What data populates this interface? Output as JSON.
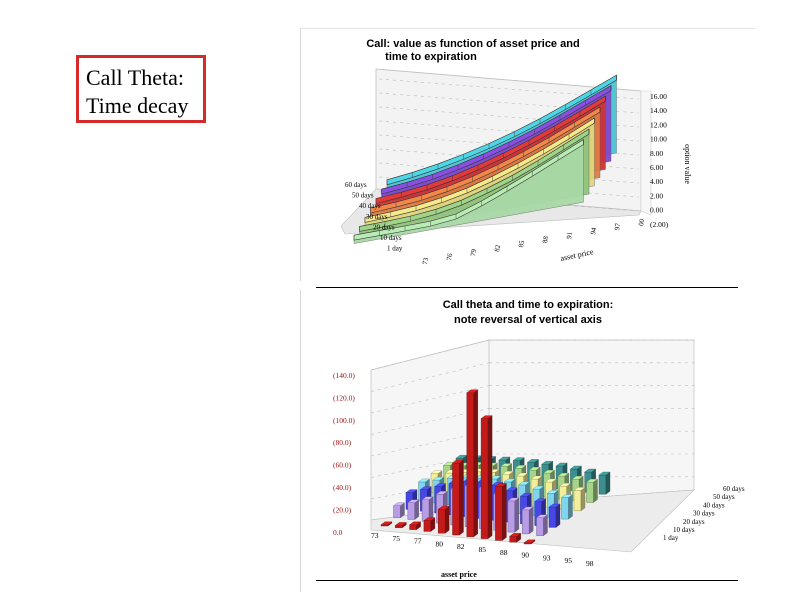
{
  "slide": {
    "title_line1": "Call Theta:",
    "title_line2": "Time decay"
  },
  "chart_data": [
    {
      "type": "area",
      "title_line1": "Call: value as function of asset price and",
      "title_line2": "time to expiration",
      "xlabel": "asset price",
      "zlabel": "option value",
      "x_ticks": [
        "73",
        "76",
        "79",
        "82",
        "85",
        "88",
        "91",
        "94",
        "97",
        "00"
      ],
      "z_ticks": [
        "16.00",
        "14.00",
        "12.00",
        "10.00",
        "8.00",
        "6.00",
        "4.00",
        "2.00",
        "0.00",
        "(2.00)"
      ],
      "series": [
        {
          "name": "60 days",
          "color": "#4fd6e6",
          "values": [
            1.1,
            1.6,
            2.3,
            3.2,
            4.3,
            5.6,
            7.1,
            8.8,
            10.6,
            12.4
          ]
        },
        {
          "name": "50 days",
          "color": "#8a4fe0",
          "values": [
            0.9,
            1.3,
            1.9,
            2.8,
            3.9,
            5.2,
            6.7,
            8.4,
            10.2,
            12.0
          ]
        },
        {
          "name": "40 days",
          "color": "#e03a3a",
          "values": [
            0.7,
            1.0,
            1.5,
            2.3,
            3.4,
            4.7,
            6.2,
            7.9,
            9.7,
            11.6
          ]
        },
        {
          "name": "30 days",
          "color": "#f2874a",
          "values": [
            0.45,
            0.7,
            1.1,
            1.8,
            2.8,
            4.1,
            5.6,
            7.3,
            9.2,
            11.1
          ]
        },
        {
          "name": "20 days",
          "color": "#f5e98a",
          "values": [
            0.25,
            0.4,
            0.7,
            1.3,
            2.2,
            3.5,
            5.0,
            6.7,
            8.6,
            10.6
          ]
        },
        {
          "name": "10 days",
          "color": "#9ed488",
          "values": [
            0.1,
            0.15,
            0.3,
            0.7,
            1.5,
            2.8,
            4.3,
            6.1,
            8.1,
            10.1
          ]
        },
        {
          "name": "1 day",
          "color": "#b8ecb4",
          "values": [
            0,
            0,
            0,
            0.05,
            0.5,
            2.0,
            3.8,
            5.7,
            7.7,
            9.7
          ]
        }
      ]
    },
    {
      "type": "bar",
      "title_line1": "Call theta and time to expiration:",
      "title_line2": "note reversal of vertical axis",
      "xlabel": "asset price",
      "y_ticks": [
        "(140.0)",
        "(120.0)",
        "(100.0)",
        "(80.0)",
        "(60.0)",
        "(40.0)",
        "(20.0)",
        "0.0"
      ],
      "x_ticks": [
        "73",
        "75",
        "77",
        "80",
        "82",
        "85",
        "88",
        "90",
        "93",
        "95",
        "98"
      ],
      "depth_labels": [
        "60 days",
        "50 days",
        "40 days",
        "30 days",
        "20 days",
        "10 days",
        "1 day"
      ],
      "ylim": [
        -140,
        0
      ],
      "series": [
        {
          "name": "1 day",
          "color": "#c41a1a",
          "values": [
            -1,
            -2,
            -4,
            -9,
            -20,
            -60,
            -120,
            -100,
            -45,
            -5,
            -1
          ]
        },
        {
          "name": "10 days",
          "color": "#b89ce6",
          "values": [
            -10,
            -14,
            -18,
            -24,
            -30,
            -34,
            -34,
            -30,
            -26,
            -20,
            -15
          ]
        },
        {
          "name": "20 days",
          "color": "#4747e6",
          "values": [
            -14,
            -18,
            -22,
            -26,
            -29,
            -30,
            -29,
            -26,
            -23,
            -20,
            -17
          ]
        },
        {
          "name": "30 days",
          "color": "#7fd4ee",
          "values": [
            -16,
            -19,
            -22,
            -24,
            -25,
            -26,
            -25,
            -24,
            -22,
            -20,
            -18
          ]
        },
        {
          "name": "40 days",
          "color": "#f2ee9c",
          "values": [
            -16,
            -18,
            -20,
            -22,
            -23,
            -23,
            -23,
            -22,
            -21,
            -19,
            -17
          ]
        },
        {
          "name": "50 days",
          "color": "#a6d48a",
          "values": [
            -16,
            -17,
            -19,
            -20,
            -21,
            -21,
            -21,
            -20,
            -19,
            -18,
            -17
          ]
        },
        {
          "name": "60 days",
          "color": "#3b8f8f",
          "values": [
            -15,
            -16,
            -17,
            -18,
            -19,
            -19,
            -19,
            -19,
            -18,
            -17,
            -16
          ]
        }
      ]
    }
  ]
}
